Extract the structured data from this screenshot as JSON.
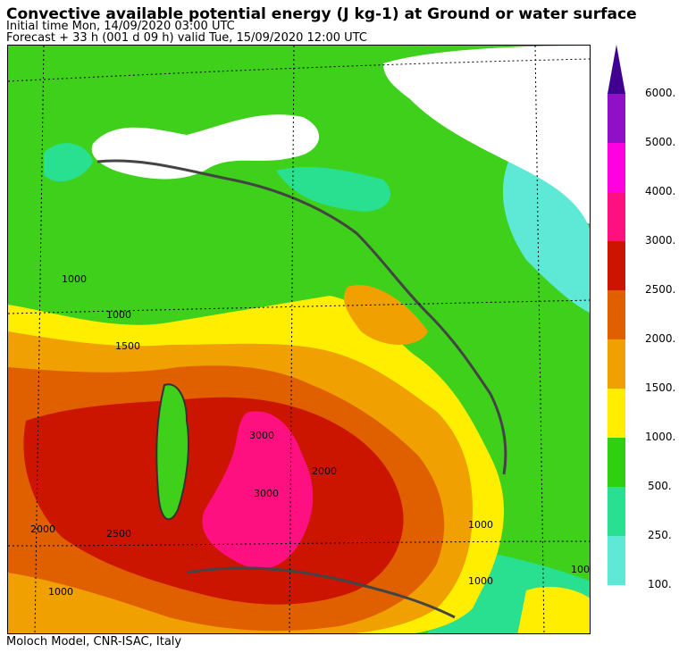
{
  "header": {
    "title": "Convective available potential energy (J kg-1) at Ground or water surface",
    "initial_time": "Initial time  Mon, 14/09/2020  03:00 UTC",
    "forecast": "Forecast  +  33 h  (001 d 09 h)  valid Tue, 15/09/2020 12:00 UTC"
  },
  "footer": {
    "credit": "Moloch Model, CNR-ISAC, Italy"
  },
  "colorbar": {
    "levels": [
      {
        "label": "100.",
        "color": "#5ee8d6"
      },
      {
        "label": "250.",
        "color": "#28e090"
      },
      {
        "label": "500.",
        "color": "#2ed010"
      },
      {
        "label": "1000.",
        "color": "#ffee00"
      },
      {
        "label": "1500.",
        "color": "#f0a000"
      },
      {
        "label": "2000.",
        "color": "#e06000"
      },
      {
        "label": "2500.",
        "color": "#cc1500"
      },
      {
        "label": "3000.",
        "color": "#ff1080"
      },
      {
        "label": "4000.",
        "color": "#ff00e0"
      },
      {
        "label": "5000.",
        "color": "#9010c8"
      },
      {
        "label": "6000.",
        "color": "#400090"
      }
    ]
  },
  "contour_labels": [
    "1000",
    "1000",
    "1500",
    "2000",
    "2500",
    "3000",
    "3000",
    "2000",
    "1000",
    "1000",
    "1000",
    "100"
  ]
}
